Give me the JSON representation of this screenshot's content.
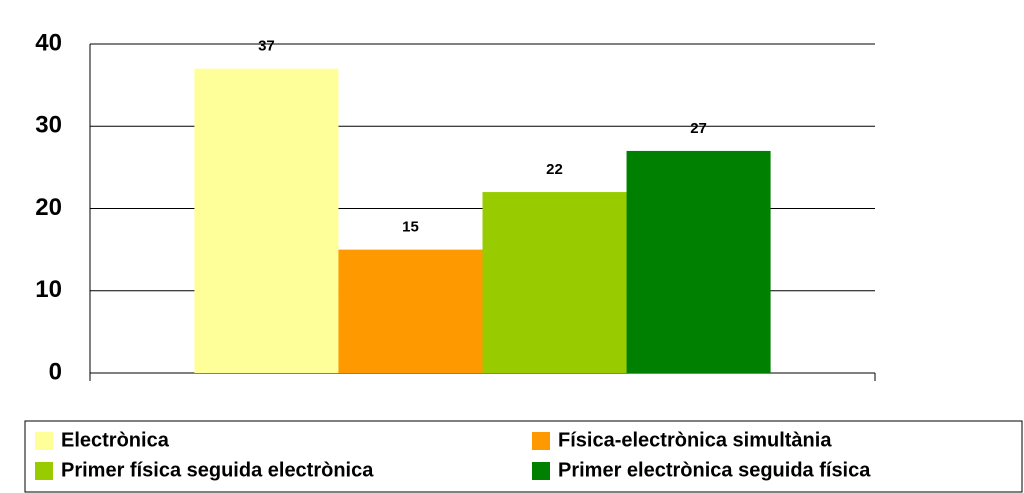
{
  "chart_data": {
    "type": "bar",
    "categories": [
      null
    ],
    "series": [
      {
        "name": "Electrònica",
        "color": "#ffff99",
        "values": [
          37
        ]
      },
      {
        "name": "Física-electrònica simultània",
        "color": "#ff9900",
        "values": [
          15
        ]
      },
      {
        "name": "Primer física seguida electrònica",
        "color": "#99cc00",
        "values": [
          22
        ]
      },
      {
        "name": "Primer electrònica seguida física",
        "color": "#008000",
        "values": [
          27
        ]
      }
    ],
    "ylim": [
      0,
      40
    ],
    "yticks": [
      0,
      10,
      20,
      30,
      40
    ],
    "grid": true,
    "legend": "bottom"
  }
}
